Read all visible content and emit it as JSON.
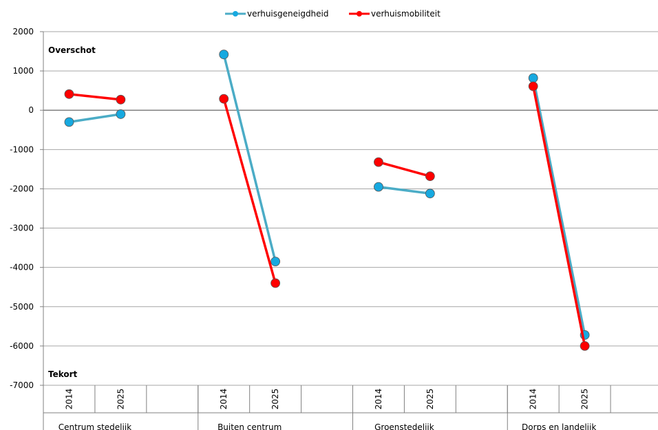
{
  "chart_data": {
    "type": "line",
    "title": "",
    "xlabel": "",
    "ylabel": "",
    "ylim": [
      -7000,
      2000
    ],
    "yticks": [
      2000,
      1000,
      0,
      -1000,
      -2000,
      -3000,
      -4000,
      -5000,
      -6000,
      -7000
    ],
    "grid": true,
    "legend_position": "top",
    "groups": [
      {
        "label": "Centrum stedelijk",
        "categories": [
          "2014",
          "2025"
        ]
      },
      {
        "label": "Buiten centrum",
        "categories": [
          "2014",
          "2025"
        ]
      },
      {
        "label": "Groenstedelijk",
        "categories": [
          "2014",
          "2025"
        ]
      },
      {
        "label": "Dorps en landelijk",
        "categories": [
          "2014",
          "2025"
        ]
      }
    ],
    "series": [
      {
        "name": "verhuisgeneigdheid",
        "color": "#4bacc6",
        "marker_color": "#17a9e0",
        "values": [
          [
            -300,
            -100
          ],
          [
            1420,
            -3850
          ],
          [
            -1950,
            -2120
          ],
          [
            820,
            -5720
          ]
        ]
      },
      {
        "name": "verhuismobiliteit",
        "color": "#ff0000",
        "marker_color": "#ff0000",
        "values": [
          [
            410,
            270
          ],
          [
            290,
            -4400
          ],
          [
            -1320,
            -1680
          ],
          [
            610,
            -6000
          ]
        ]
      }
    ],
    "annotations": {
      "top": "Overschot",
      "bottom": "Tekort"
    }
  }
}
